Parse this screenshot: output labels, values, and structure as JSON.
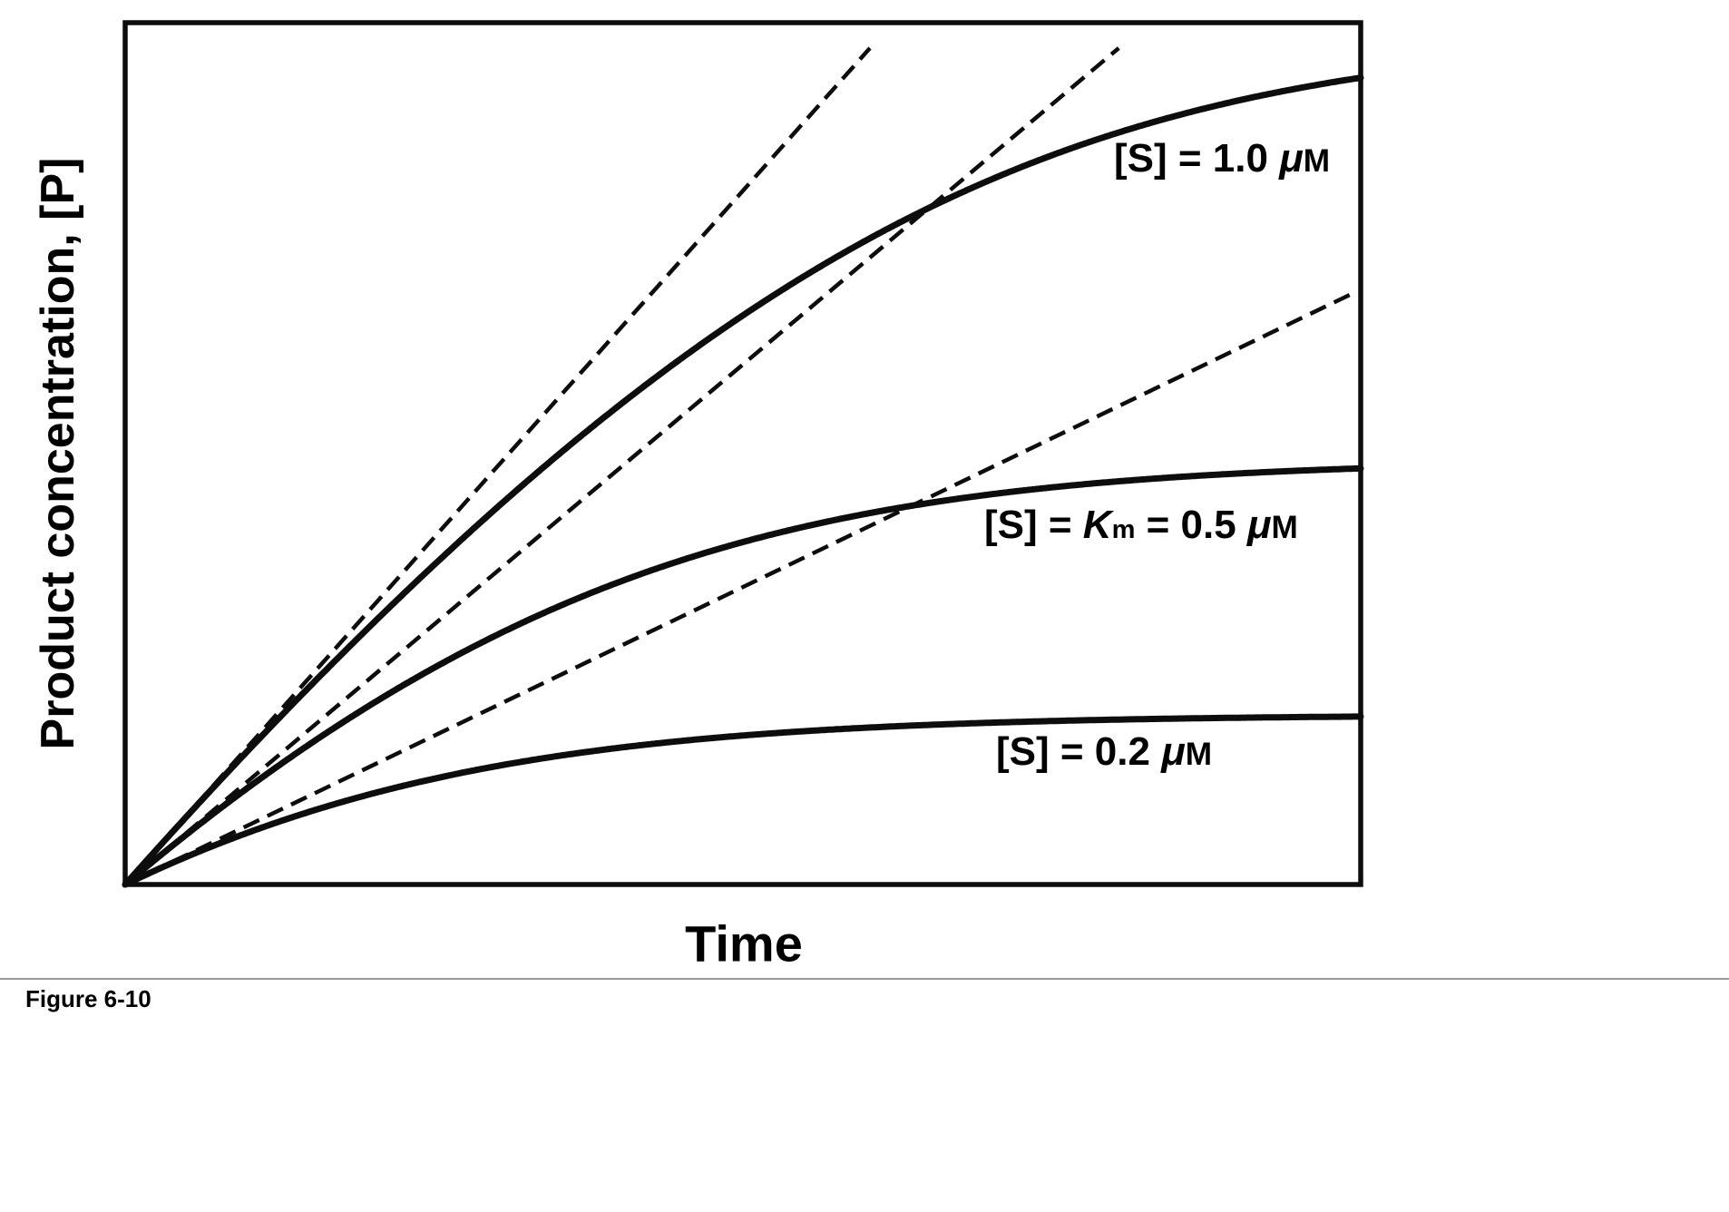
{
  "figure": {
    "caption": "Figure 6-10",
    "x_label": "Time",
    "y_label": "Product concentration, [P]"
  },
  "style": {
    "curve_color": "#0d0d0d",
    "dash_color": "#0d0d0d",
    "axis_color": "#0d0d0d",
    "background": "#ffffff"
  },
  "chart_data": {
    "type": "line",
    "title": "",
    "xlabel": "Time",
    "ylabel": "Product concentration, [P]",
    "x_ticks": [],
    "y_ticks": [],
    "Km_uM": 0.5,
    "Vmax_relative": 1.0,
    "time_span_relative": 2.45,
    "series": [
      {
        "name": "[S] = 1.0 μM",
        "S0_uM": 1.0,
        "initial_rate_relative": 0.667,
        "plateau_uM": 1.0,
        "line_style": "solid",
        "label_parts": [
          {
            "t": "[S] = 1.0 "
          },
          {
            "t": "μ",
            "s": "mu"
          },
          {
            "t": "M",
            "s": "sc"
          }
        ]
      },
      {
        "name": "[S] = Km = 0.5 μM",
        "S0_uM": 0.5,
        "initial_rate_relative": 0.5,
        "plateau_uM": 0.5,
        "line_style": "solid",
        "label_parts": [
          {
            "t": "[S] = "
          },
          {
            "t": "K",
            "s": "i"
          },
          {
            "t": "m",
            "s": "sub"
          },
          {
            "t": " = 0.5 "
          },
          {
            "t": "μ",
            "s": "mu"
          },
          {
            "t": "M",
            "s": "sc"
          }
        ]
      },
      {
        "name": "[S] = 0.2 μM",
        "S0_uM": 0.2,
        "initial_rate_relative": 0.286,
        "plateau_uM": 0.2,
        "line_style": "solid",
        "label_parts": [
          {
            "t": "[S] = 0.2 "
          },
          {
            "t": "μ",
            "s": "mu"
          },
          {
            "t": "M",
            "s": "sc"
          }
        ]
      }
    ],
    "tangent_lines": [
      {
        "for_series": "[S] = 1.0 μM",
        "slope_relative": 0.667,
        "line_style": "dashed"
      },
      {
        "for_series": "[S] = Km = 0.5 μM",
        "slope_relative": 0.5,
        "line_style": "dashed"
      },
      {
        "for_series": "[S] = 0.2 μM",
        "slope_relative": 0.286,
        "line_style": "dashed"
      }
    ]
  }
}
